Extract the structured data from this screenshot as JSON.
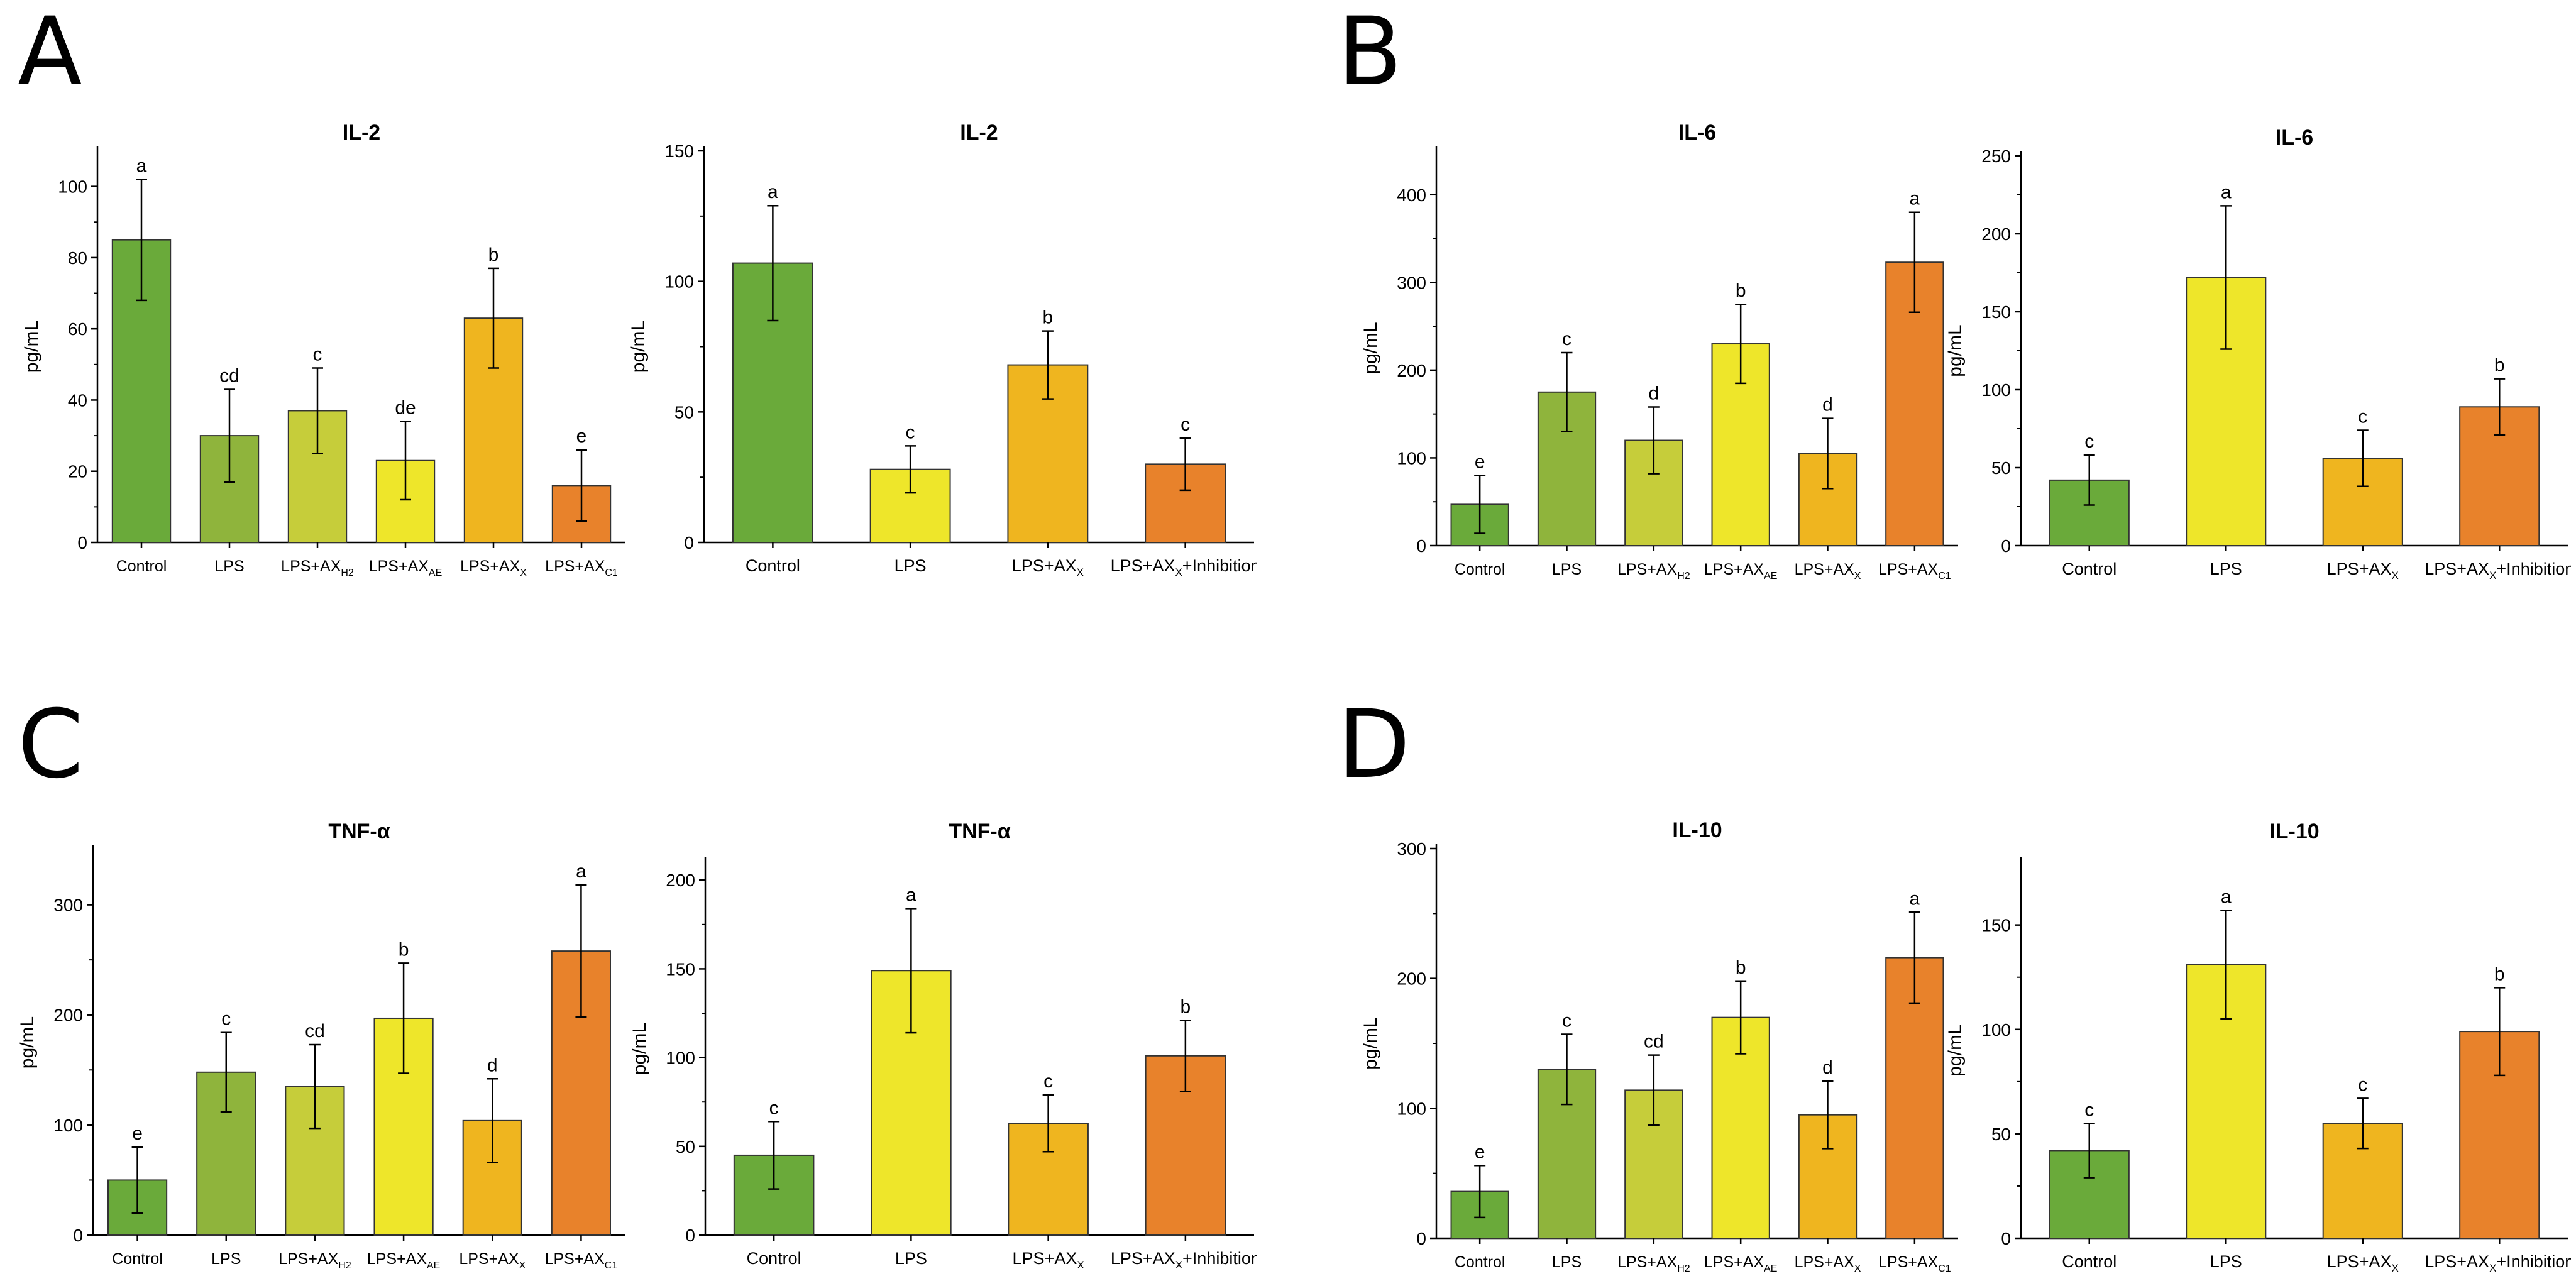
{
  "panels": [
    {
      "letter": "A"
    },
    {
      "letter": "B"
    },
    {
      "letter": "C"
    },
    {
      "letter": "D"
    }
  ],
  "colors": {
    "green": "#6aaa3a",
    "lightgreen": "#8fb43c",
    "olive": "#c6cd3a",
    "yellow": "#eee62a",
    "amber": "#efb51f",
    "orange": "#e8822b"
  },
  "chart_data": [
    {
      "type": "bar",
      "title": "IL-2",
      "ylabel": "pg/mL",
      "ylim": [
        0,
        110
      ],
      "yticks": [
        0,
        20,
        40,
        60,
        80,
        100
      ],
      "categories": [
        {
          "main": "Control",
          "sub": ""
        },
        {
          "main": "LPS",
          "sub": ""
        },
        {
          "main": "LPS+AX",
          "sub": "H2"
        },
        {
          "main": "LPS+AX",
          "sub": "AE"
        },
        {
          "main": "LPS+AX",
          "sub": "X"
        },
        {
          "main": "LPS+AX",
          "sub": "C1"
        }
      ],
      "values": [
        85,
        30,
        37,
        23,
        63,
        16
      ],
      "errors": [
        17,
        13,
        12,
        11,
        14,
        10
      ],
      "letters": [
        "a",
        "cd",
        "c",
        "de",
        "b",
        "e"
      ],
      "bar_colors": [
        "green",
        "lightgreen",
        "olive",
        "yellow",
        "amber",
        "orange"
      ]
    },
    {
      "type": "bar",
      "title": "IL-2",
      "ylabel": "pg/mL",
      "ylim": [
        0,
        150
      ],
      "yticks": [
        0,
        50,
        100,
        150
      ],
      "categories": [
        {
          "main": "Control",
          "sub": ""
        },
        {
          "main": "LPS",
          "sub": ""
        },
        {
          "main": "LPS+AX",
          "sub": "X"
        },
        {
          "main": "LPS+AX",
          "sub": "X",
          "suffix": "+Inhibition"
        }
      ],
      "values": [
        107,
        28,
        68,
        30
      ],
      "errors": [
        22,
        9,
        13,
        10
      ],
      "letters": [
        "a",
        "c",
        "b",
        "c"
      ],
      "bar_colors": [
        "green",
        "yellow",
        "amber",
        "orange"
      ]
    },
    {
      "type": "bar",
      "title": "IL-6",
      "ylabel": "pg/mL",
      "ylim": [
        0,
        450
      ],
      "yticks": [
        0,
        100,
        200,
        300,
        400
      ],
      "categories": [
        {
          "main": "Control",
          "sub": ""
        },
        {
          "main": "LPS",
          "sub": ""
        },
        {
          "main": "LPS+AX",
          "sub": "H2"
        },
        {
          "main": "LPS+AX",
          "sub": "AE"
        },
        {
          "main": "LPS+AX",
          "sub": "X"
        },
        {
          "main": "LPS+AX",
          "sub": "C1"
        }
      ],
      "values": [
        47,
        175,
        120,
        230,
        105,
        323
      ],
      "errors": [
        33,
        45,
        38,
        45,
        40,
        57
      ],
      "letters": [
        "e",
        "c",
        "d",
        "b",
        "d",
        "a"
      ],
      "bar_colors": [
        "green",
        "lightgreen",
        "olive",
        "yellow",
        "amber",
        "orange"
      ]
    },
    {
      "type": "bar",
      "title": "IL-6",
      "ylabel": "pg/mL",
      "ylim": [
        0,
        250
      ],
      "yticks": [
        0,
        50,
        100,
        150,
        200,
        250
      ],
      "categories": [
        {
          "main": "Control",
          "sub": ""
        },
        {
          "main": "LPS",
          "sub": ""
        },
        {
          "main": "LPS+AX",
          "sub": "X"
        },
        {
          "main": "LPS+AX",
          "sub": "X",
          "suffix": "+Inhibition"
        }
      ],
      "values": [
        42,
        172,
        56,
        89
      ],
      "errors": [
        16,
        46,
        18,
        18
      ],
      "letters": [
        "c",
        "a",
        "c",
        "b"
      ],
      "bar_colors": [
        "green",
        "yellow",
        "amber",
        "orange"
      ]
    },
    {
      "type": "bar",
      "title": "TNF-α",
      "ylabel": "pg/mL",
      "ylim": [
        0,
        350
      ],
      "yticks": [
        0,
        100,
        200,
        300
      ],
      "categories": [
        {
          "main": "Control",
          "sub": ""
        },
        {
          "main": "LPS",
          "sub": ""
        },
        {
          "main": "LPS+AX",
          "sub": "H2"
        },
        {
          "main": "LPS+AX",
          "sub": "AE"
        },
        {
          "main": "LPS+AX",
          "sub": "X"
        },
        {
          "main": "LPS+AX",
          "sub": "C1"
        }
      ],
      "values": [
        50,
        148,
        135,
        197,
        104,
        258
      ],
      "errors": [
        30,
        36,
        38,
        50,
        38,
        60
      ],
      "letters": [
        "e",
        "c",
        "cd",
        "b",
        "d",
        "a"
      ],
      "bar_colors": [
        "green",
        "lightgreen",
        "olive",
        "yellow",
        "amber",
        "orange"
      ]
    },
    {
      "type": "bar",
      "title": "TNF-α",
      "ylabel": "pg/mL",
      "ylim": [
        0,
        210
      ],
      "yticks": [
        0,
        50,
        100,
        150,
        200
      ],
      "categories": [
        {
          "main": "Control",
          "sub": ""
        },
        {
          "main": "LPS",
          "sub": ""
        },
        {
          "main": "LPS+AX",
          "sub": "X"
        },
        {
          "main": "LPS+AX",
          "sub": "X",
          "suffix": "+Inhibition"
        }
      ],
      "values": [
        45,
        149,
        63,
        101
      ],
      "errors": [
        19,
        35,
        16,
        20
      ],
      "letters": [
        "c",
        "a",
        "c",
        "b"
      ],
      "bar_colors": [
        "green",
        "yellow",
        "amber",
        "orange"
      ]
    },
    {
      "type": "bar",
      "title": "IL-10",
      "ylabel": "pg/mL",
      "ylim": [
        0,
        300
      ],
      "yticks": [
        0,
        100,
        200,
        300
      ],
      "categories": [
        {
          "main": "Control",
          "sub": ""
        },
        {
          "main": "LPS",
          "sub": ""
        },
        {
          "main": "LPS+AX",
          "sub": "H2"
        },
        {
          "main": "LPS+AX",
          "sub": "AE"
        },
        {
          "main": "LPS+AX",
          "sub": "X"
        },
        {
          "main": "LPS+AX",
          "sub": "C1"
        }
      ],
      "values": [
        36,
        130,
        114,
        170,
        95,
        216
      ],
      "errors": [
        20,
        27,
        27,
        28,
        26,
        35
      ],
      "letters": [
        "e",
        "c",
        "cd",
        "b",
        "d",
        "a"
      ],
      "bar_colors": [
        "green",
        "lightgreen",
        "olive",
        "yellow",
        "amber",
        "orange"
      ]
    },
    {
      "type": "bar",
      "title": "IL-10",
      "ylabel": "pg/mL",
      "ylim": [
        0,
        180
      ],
      "yticks": [
        0,
        50,
        100,
        150
      ],
      "categories": [
        {
          "main": "Control",
          "sub": ""
        },
        {
          "main": "LPS",
          "sub": ""
        },
        {
          "main": "LPS+AX",
          "sub": "X"
        },
        {
          "main": "LPS+AX",
          "sub": "X",
          "suffix": "+Inhibition"
        }
      ],
      "values": [
        42,
        131,
        55,
        99
      ],
      "errors": [
        13,
        26,
        12,
        21
      ],
      "letters": [
        "c",
        "a",
        "c",
        "b"
      ],
      "bar_colors": [
        "green",
        "yellow",
        "amber",
        "orange"
      ]
    }
  ]
}
